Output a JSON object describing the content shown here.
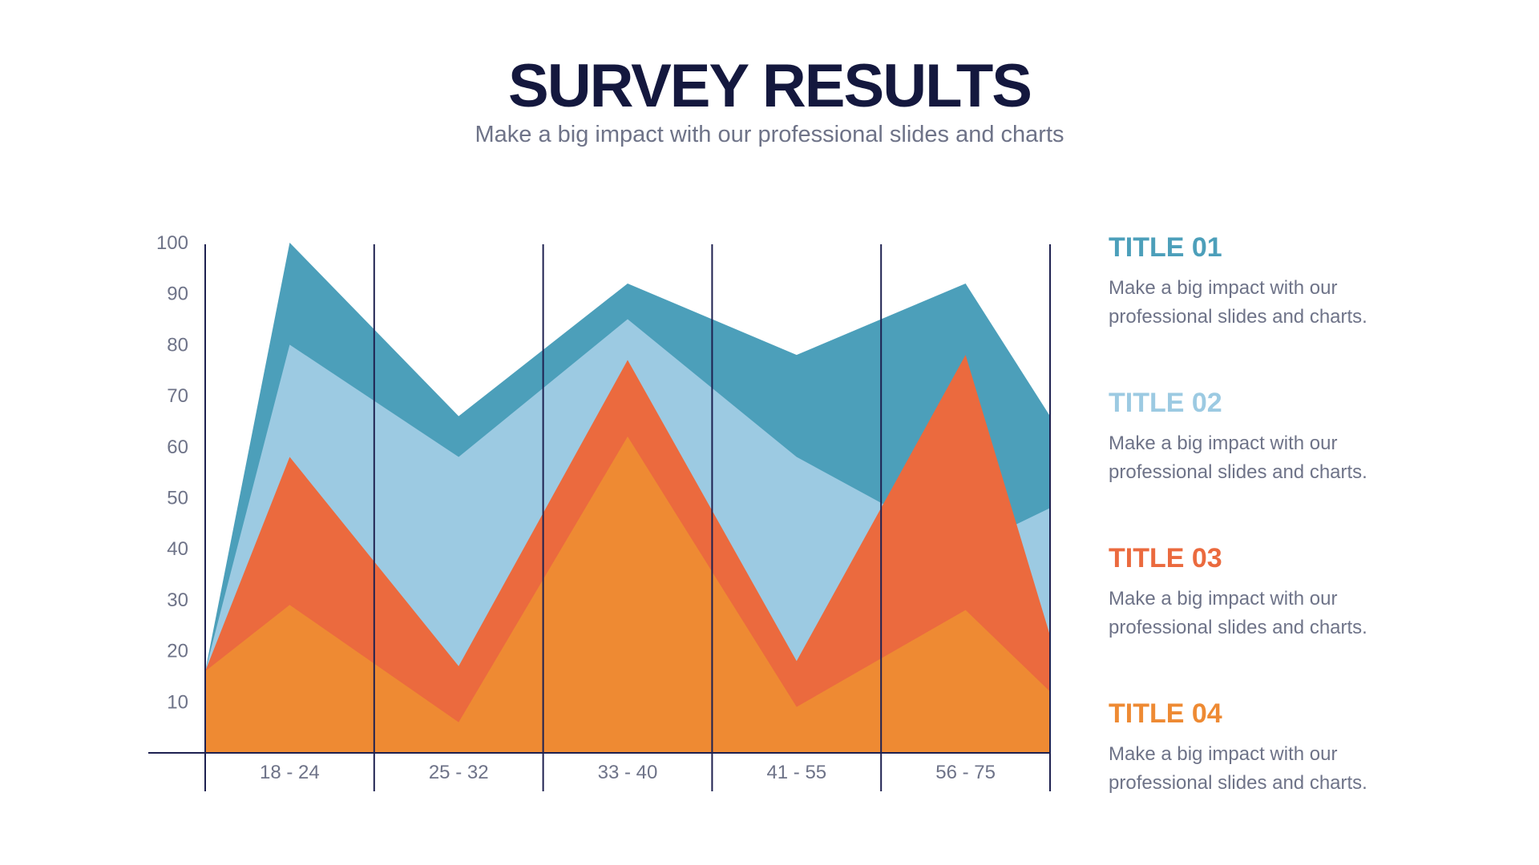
{
  "header": {
    "title": "SURVEY RESULTS",
    "subtitle": "Make a big impact with our professional slides and charts"
  },
  "colors": {
    "title": "#14183e",
    "text": "#6e7388",
    "axis": "#1e2150"
  },
  "legend": [
    {
      "title": "TITLE 01",
      "text": "Make a big impact with our professional slides and charts.",
      "color": "#4c9fba"
    },
    {
      "title": "TITLE 02",
      "text": "Make a big impact with our professional slides and charts.",
      "color": "#9ccae2"
    },
    {
      "title": "TITLE 03",
      "text": "Make a big impact with our professional slides and charts.",
      "color": "#eb6a3e"
    },
    {
      "title": "TITLE 04",
      "text": "Make a big impact with our professional slides and charts.",
      "color": "#ee8a33"
    }
  ],
  "chart_data": {
    "type": "area",
    "categories": [
      "18 - 24",
      "25 - 32",
      "33 - 40",
      "41 - 55",
      "56 - 75"
    ],
    "ylim": [
      0,
      100
    ],
    "yticks": [
      10,
      20,
      30,
      40,
      50,
      60,
      70,
      80,
      90,
      100
    ],
    "x": [
      0,
      0.5,
      1.5,
      2.5,
      3.5,
      4.5,
      5
    ],
    "grid": "vertical lines at category boundaries",
    "legend_position": "right",
    "series": [
      {
        "color": "#4c9fba",
        "values": [
          16,
          100,
          66,
          92,
          78,
          92,
          66
        ]
      },
      {
        "color": "#9ccae2",
        "values": [
          16,
          80,
          58,
          85,
          58,
          40,
          48
        ]
      },
      {
        "color": "#eb6a3e",
        "values": [
          16,
          58,
          17,
          77,
          18,
          78,
          23
        ]
      },
      {
        "color": "#ee8a33",
        "values": [
          16,
          29,
          6,
          62,
          9,
          28,
          12
        ]
      }
    ]
  }
}
